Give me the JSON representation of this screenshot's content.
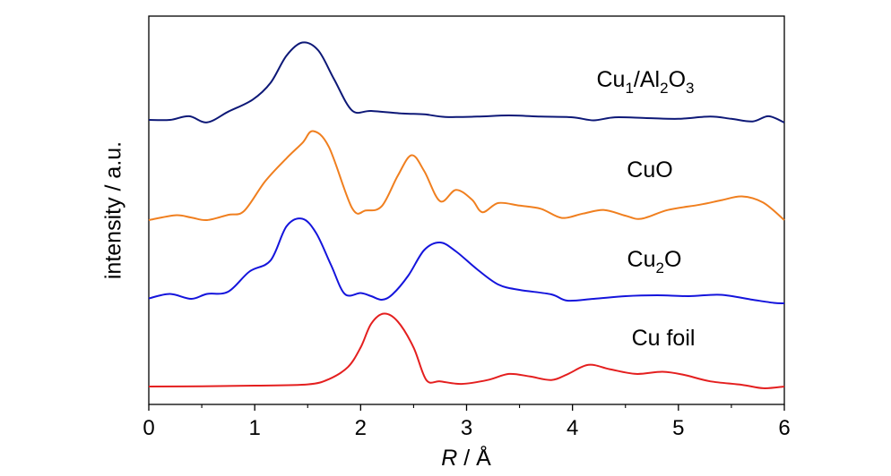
{
  "chart_data": {
    "type": "line",
    "xlabel_italic": "R",
    "xlabel_rest": " / Å",
    "ylabel": "intensity / a.u.",
    "xlim": [
      0,
      6
    ],
    "x_ticks": [
      "0",
      "1",
      "2",
      "3",
      "4",
      "5",
      "6"
    ],
    "y_ticks_shown": false,
    "grid": false,
    "series": [
      {
        "name_parts": [
          [
            "Cu",
            ""
          ],
          [
            "1",
            "sub"
          ],
          [
            "/Al",
            ""
          ],
          [
            "2",
            "sub"
          ],
          [
            "O",
            ""
          ],
          [
            "3",
            "sub"
          ]
        ],
        "color": "#0d1877",
        "points": [
          [
            0,
            0.71
          ],
          [
            0.2,
            0.72
          ],
          [
            0.38,
            1.7
          ],
          [
            0.55,
            0.05
          ],
          [
            0.75,
            2.9
          ],
          [
            0.98,
            6.1
          ],
          [
            1.15,
            10.6
          ],
          [
            1.3,
            17.8
          ],
          [
            1.45,
            21.3
          ],
          [
            1.6,
            19.2
          ],
          [
            1.75,
            11.5
          ],
          [
            1.92,
            3.2
          ],
          [
            2.1,
            3.1
          ],
          [
            2.4,
            2.4
          ],
          [
            2.6,
            2.2
          ],
          [
            2.8,
            1.5
          ],
          [
            3.1,
            1.6
          ],
          [
            3.4,
            1.9
          ],
          [
            3.7,
            1.6
          ],
          [
            4.0,
            1.4
          ],
          [
            4.2,
            0.6
          ],
          [
            4.4,
            1.4
          ],
          [
            4.7,
            1.2
          ],
          [
            5.0,
            1.0
          ],
          [
            5.3,
            1.6
          ],
          [
            5.5,
            1.0
          ],
          [
            5.7,
            0.3
          ],
          [
            5.85,
            1.7
          ],
          [
            6.0,
            0.0
          ]
        ]
      },
      {
        "name_parts": [
          [
            "CuO",
            ""
          ]
        ],
        "color": "#f07f1f",
        "points": [
          [
            0,
            0.0
          ],
          [
            0.25,
            1.1
          ],
          [
            0.4,
            0.6
          ],
          [
            0.55,
            0.0
          ],
          [
            0.75,
            1.2
          ],
          [
            0.9,
            2.1
          ],
          [
            1.1,
            8.9
          ],
          [
            1.3,
            14.1
          ],
          [
            1.45,
            17.6
          ],
          [
            1.55,
            20.3
          ],
          [
            1.7,
            16.7
          ],
          [
            1.92,
            2.7
          ],
          [
            2.05,
            2.2
          ],
          [
            2.2,
            3.2
          ],
          [
            2.35,
            10.1
          ],
          [
            2.48,
            14.8
          ],
          [
            2.6,
            11.2
          ],
          [
            2.75,
            4.3
          ],
          [
            2.9,
            6.9
          ],
          [
            3.05,
            4.7
          ],
          [
            3.15,
            1.8
          ],
          [
            3.3,
            3.9
          ],
          [
            3.5,
            3.3
          ],
          [
            3.7,
            2.6
          ],
          [
            3.9,
            0.5
          ],
          [
            4.1,
            1.5
          ],
          [
            4.3,
            2.3
          ],
          [
            4.5,
            1.0
          ],
          [
            4.65,
            0.3
          ],
          [
            4.9,
            2.3
          ],
          [
            5.2,
            3.5
          ],
          [
            5.4,
            4.5
          ],
          [
            5.6,
            5.4
          ],
          [
            5.8,
            4.0
          ],
          [
            6.0,
            0.0
          ]
        ]
      },
      {
        "name_parts": [
          [
            "Cu",
            ""
          ],
          [
            "2",
            "sub"
          ],
          [
            "O",
            ""
          ]
        ],
        "color": "#1414dc",
        "points": [
          [
            0,
            0.5
          ],
          [
            0.2,
            1.5
          ],
          [
            0.4,
            0.4
          ],
          [
            0.55,
            1.5
          ],
          [
            0.75,
            2.0
          ],
          [
            0.95,
            6.5
          ],
          [
            1.15,
            9.0
          ],
          [
            1.3,
            16.6
          ],
          [
            1.45,
            18.3
          ],
          [
            1.58,
            15.1
          ],
          [
            1.72,
            8.0
          ],
          [
            1.85,
            1.5
          ],
          [
            2.0,
            1.7
          ],
          [
            2.1,
            1.0
          ],
          [
            2.2,
            0.2
          ],
          [
            2.3,
            1.4
          ],
          [
            2.45,
            5.6
          ],
          [
            2.6,
            11.3
          ],
          [
            2.75,
            13.0
          ],
          [
            2.9,
            11.0
          ],
          [
            3.1,
            7.0
          ],
          [
            3.3,
            3.6
          ],
          [
            3.5,
            2.4
          ],
          [
            3.8,
            1.4
          ],
          [
            3.95,
            0.0
          ],
          [
            4.2,
            0.4
          ],
          [
            4.5,
            1.0
          ],
          [
            4.8,
            1.2
          ],
          [
            5.1,
            1.0
          ],
          [
            5.4,
            1.3
          ],
          [
            5.7,
            0.2
          ],
          [
            5.9,
            -0.5
          ],
          [
            6.0,
            -0.6
          ]
        ]
      },
      {
        "name_parts": [
          [
            "Cu foil",
            ""
          ]
        ],
        "color": "#e41f1f",
        "points": [
          [
            0,
            0.0
          ],
          [
            0.5,
            0.05
          ],
          [
            1.0,
            0.2
          ],
          [
            1.5,
            0.5
          ],
          [
            1.7,
            1.7
          ],
          [
            1.88,
            4.5
          ],
          [
            2.0,
            9.0
          ],
          [
            2.1,
            14.5
          ],
          [
            2.22,
            16.8
          ],
          [
            2.35,
            15.0
          ],
          [
            2.5,
            9.0
          ],
          [
            2.62,
            1.5
          ],
          [
            2.75,
            1.2
          ],
          [
            2.95,
            0.6
          ],
          [
            3.2,
            1.5
          ],
          [
            3.4,
            2.9
          ],
          [
            3.6,
            2.3
          ],
          [
            3.8,
            1.5
          ],
          [
            3.95,
            2.8
          ],
          [
            4.15,
            5.0
          ],
          [
            4.35,
            4.0
          ],
          [
            4.6,
            2.9
          ],
          [
            4.85,
            3.4
          ],
          [
            5.05,
            2.7
          ],
          [
            5.3,
            1.2
          ],
          [
            5.6,
            0.4
          ],
          [
            5.8,
            -0.4
          ],
          [
            6.0,
            0.0
          ]
        ]
      }
    ]
  }
}
